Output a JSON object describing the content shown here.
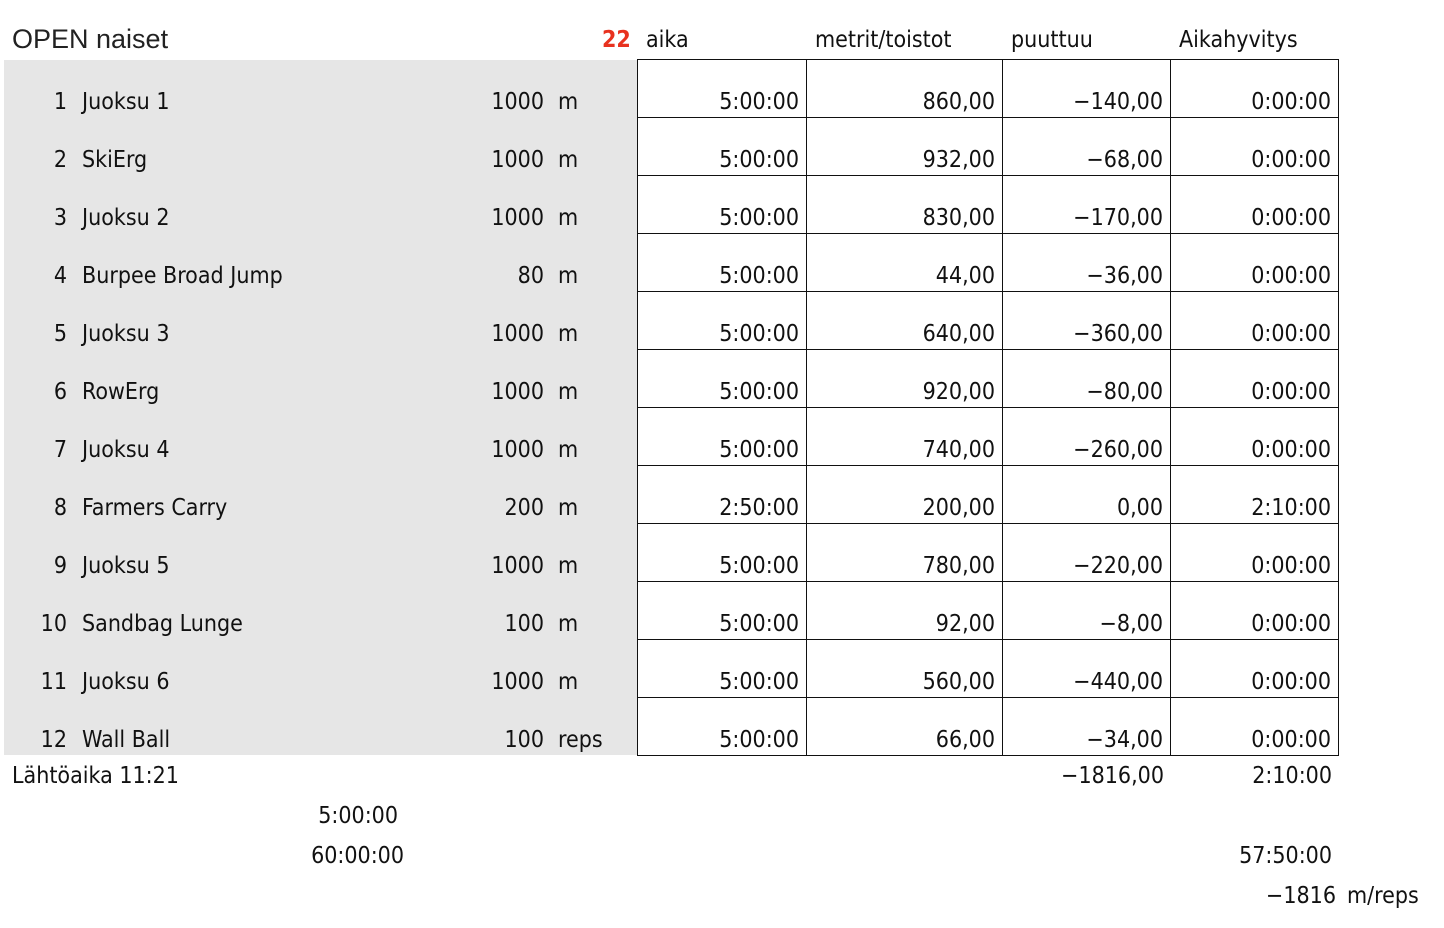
{
  "sheet": {
    "title": "OPEN naiset",
    "count": "22",
    "count_color": "#e8321f",
    "headers": [
      "aika",
      "metrit/toistot",
      "puuttuu",
      "Aikahyvitys"
    ],
    "rows": [
      {
        "n": "1",
        "name": "Juoksu 1",
        "target": "1000",
        "unit": "m",
        "aika": "5:00:00",
        "metrit": "860,00",
        "puuttuu": "−140,00",
        "hyvitys": "0:00:00"
      },
      {
        "n": "2",
        "name": "SkiErg",
        "target": "1000",
        "unit": "m",
        "aika": "5:00:00",
        "metrit": "932,00",
        "puuttuu": "−68,00",
        "hyvitys": "0:00:00"
      },
      {
        "n": "3",
        "name": "Juoksu 2",
        "target": "1000",
        "unit": "m",
        "aika": "5:00:00",
        "metrit": "830,00",
        "puuttuu": "−170,00",
        "hyvitys": "0:00:00"
      },
      {
        "n": "4",
        "name": "Burpee Broad Jump",
        "target": "80",
        "unit": "m",
        "aika": "5:00:00",
        "metrit": "44,00",
        "puuttuu": "−36,00",
        "hyvitys": "0:00:00"
      },
      {
        "n": "5",
        "name": "Juoksu 3",
        "target": "1000",
        "unit": "m",
        "aika": "5:00:00",
        "metrit": "640,00",
        "puuttuu": "−360,00",
        "hyvitys": "0:00:00"
      },
      {
        "n": "6",
        "name": "RowErg",
        "target": "1000",
        "unit": "m",
        "aika": "5:00:00",
        "metrit": "920,00",
        "puuttuu": "−80,00",
        "hyvitys": "0:00:00"
      },
      {
        "n": "7",
        "name": "Juoksu 4",
        "target": "1000",
        "unit": "m",
        "aika": "5:00:00",
        "metrit": "740,00",
        "puuttuu": "−260,00",
        "hyvitys": "0:00:00"
      },
      {
        "n": "8",
        "name": "Farmers Carry",
        "target": "200",
        "unit": "m",
        "aika": "2:50:00",
        "metrit": "200,00",
        "puuttuu": "0,00",
        "hyvitys": "2:10:00"
      },
      {
        "n": "9",
        "name": "Juoksu 5",
        "target": "1000",
        "unit": "m",
        "aika": "5:00:00",
        "metrit": "780,00",
        "puuttuu": "−220,00",
        "hyvitys": "0:00:00"
      },
      {
        "n": "10",
        "name": "Sandbag Lunge",
        "target": "100",
        "unit": "m",
        "aika": "5:00:00",
        "metrit": "92,00",
        "puuttuu": "−8,00",
        "hyvitys": "0:00:00"
      },
      {
        "n": "11",
        "name": "Juoksu 6",
        "target": "1000",
        "unit": "m",
        "aika": "5:00:00",
        "metrit": "560,00",
        "puuttuu": "−440,00",
        "hyvitys": "0:00:00"
      },
      {
        "n": "12",
        "name": "Wall Ball",
        "target": "100",
        "unit": "reps",
        "aika": "5:00:00",
        "metrit": "66,00",
        "puuttuu": "−34,00",
        "hyvitys": "0:00:00"
      }
    ]
  },
  "footer": {
    "start_time": "Lähtöaika 11:21",
    "puuttuu_total": "−1816,00",
    "hyvitys_total": "2:10:00",
    "time_per_station": "5:00:00",
    "time_total": "60:00:00",
    "final_time": "57:50:00",
    "missing_total": "−1816",
    "missing_unit": "m/reps"
  }
}
